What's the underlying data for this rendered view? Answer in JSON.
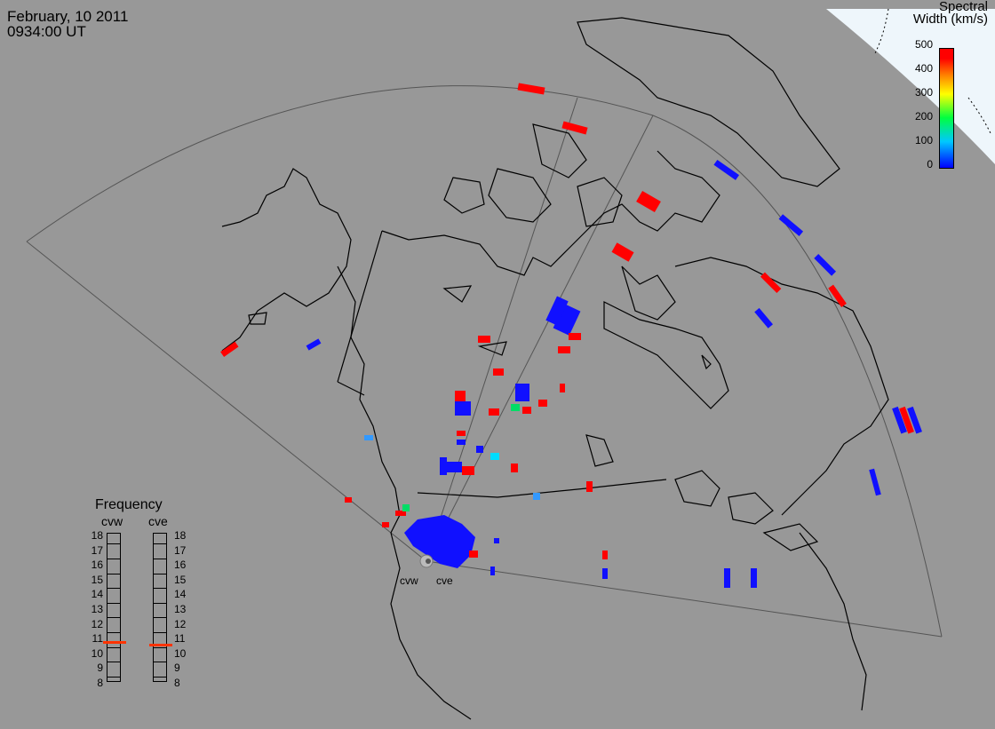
{
  "header": {
    "date": "February, 10 2011",
    "time": "0934:00 UT"
  },
  "legend": {
    "title_line1": "Spectral",
    "title_line2": "Width (km/s)",
    "ticks": [
      "500",
      "400",
      "300",
      "200",
      "100",
      "0"
    ],
    "colors": {
      "low": "#0000ff",
      "mid_low": "#00c8ff",
      "mid": "#00ff40",
      "mid_high": "#ffff00",
      "high": "#ff0000"
    }
  },
  "radars": [
    {
      "code": "cvw"
    },
    {
      "code": "cve"
    }
  ],
  "frequency": {
    "title": "Frequency",
    "left_label": "cvw",
    "right_label": "cve",
    "ticks": [
      "18",
      "17",
      "16",
      "15",
      "14",
      "13",
      "12",
      "11",
      "10",
      "9",
      "8"
    ],
    "cvw_value_mhz": 10.8,
    "cve_value_mhz": 10.6,
    "range_mhz": [
      8,
      18
    ]
  },
  "colors": {
    "background": "#989898",
    "land": "#989898",
    "coast": "#000000",
    "fov": "#555555",
    "polar": "#eef6fb"
  }
}
